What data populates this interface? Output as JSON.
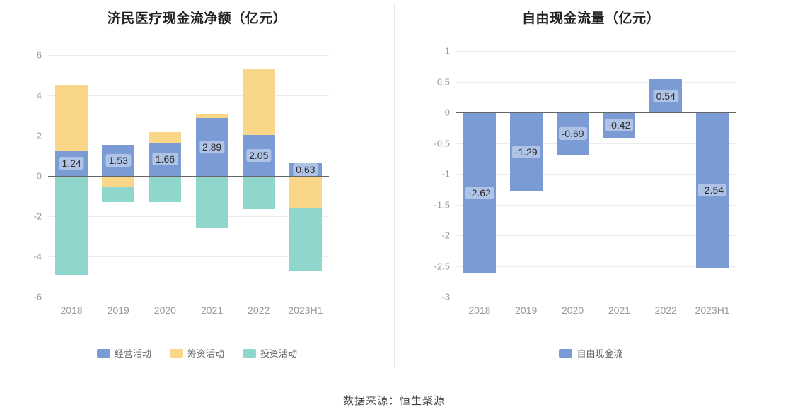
{
  "footer": {
    "source": "数据来源：恒生聚源"
  },
  "colors": {
    "operating_blue": "#7B9BD5",
    "financing_orange": "#FAD689",
    "investing_teal": "#8FD6CD",
    "axis_text": "#999999",
    "zero_line": "#666666",
    "title_text": "#222222"
  },
  "chart_data": [
    {
      "type": "bar",
      "stacked": true,
      "title": "济民医疗现金流净额（亿元）",
      "categories": [
        "2018",
        "2019",
        "2020",
        "2021",
        "2022",
        "2023H1"
      ],
      "series": [
        {
          "name": "经营活动",
          "color": "#7B9BD5",
          "show_labels": true,
          "values": [
            1.24,
            1.53,
            1.66,
            2.89,
            2.05,
            0.63
          ]
        },
        {
          "name": "筹资活动",
          "color": "#FAD689",
          "show_labels": false,
          "values": [
            3.3,
            -0.55,
            0.5,
            0.15,
            3.3,
            -1.6
          ]
        },
        {
          "name": "投资活动",
          "color": "#8FD6CD",
          "show_labels": false,
          "values": [
            -4.9,
            -0.75,
            -1.3,
            -2.6,
            -1.65,
            -3.1
          ]
        }
      ],
      "ylim": [
        -6,
        6
      ],
      "yticks": [
        6,
        4,
        2,
        0,
        -2,
        -4,
        -6
      ],
      "grid": true,
      "legend_position": "bottom"
    },
    {
      "type": "bar",
      "stacked": false,
      "title": "自由现金流量（亿元）",
      "categories": [
        "2018",
        "2019",
        "2020",
        "2021",
        "2022",
        "2023H1"
      ],
      "series": [
        {
          "name": "自由现金流",
          "color": "#7B9BD5",
          "show_labels": true,
          "values": [
            -2.62,
            -1.29,
            -0.69,
            -0.42,
            0.54,
            -2.54
          ]
        }
      ],
      "ylim": [
        -3,
        1
      ],
      "yticks": [
        1,
        0.5,
        0,
        -0.5,
        -1,
        -1.5,
        -2,
        -2.5,
        -3
      ],
      "grid": true,
      "legend_position": "bottom"
    }
  ]
}
